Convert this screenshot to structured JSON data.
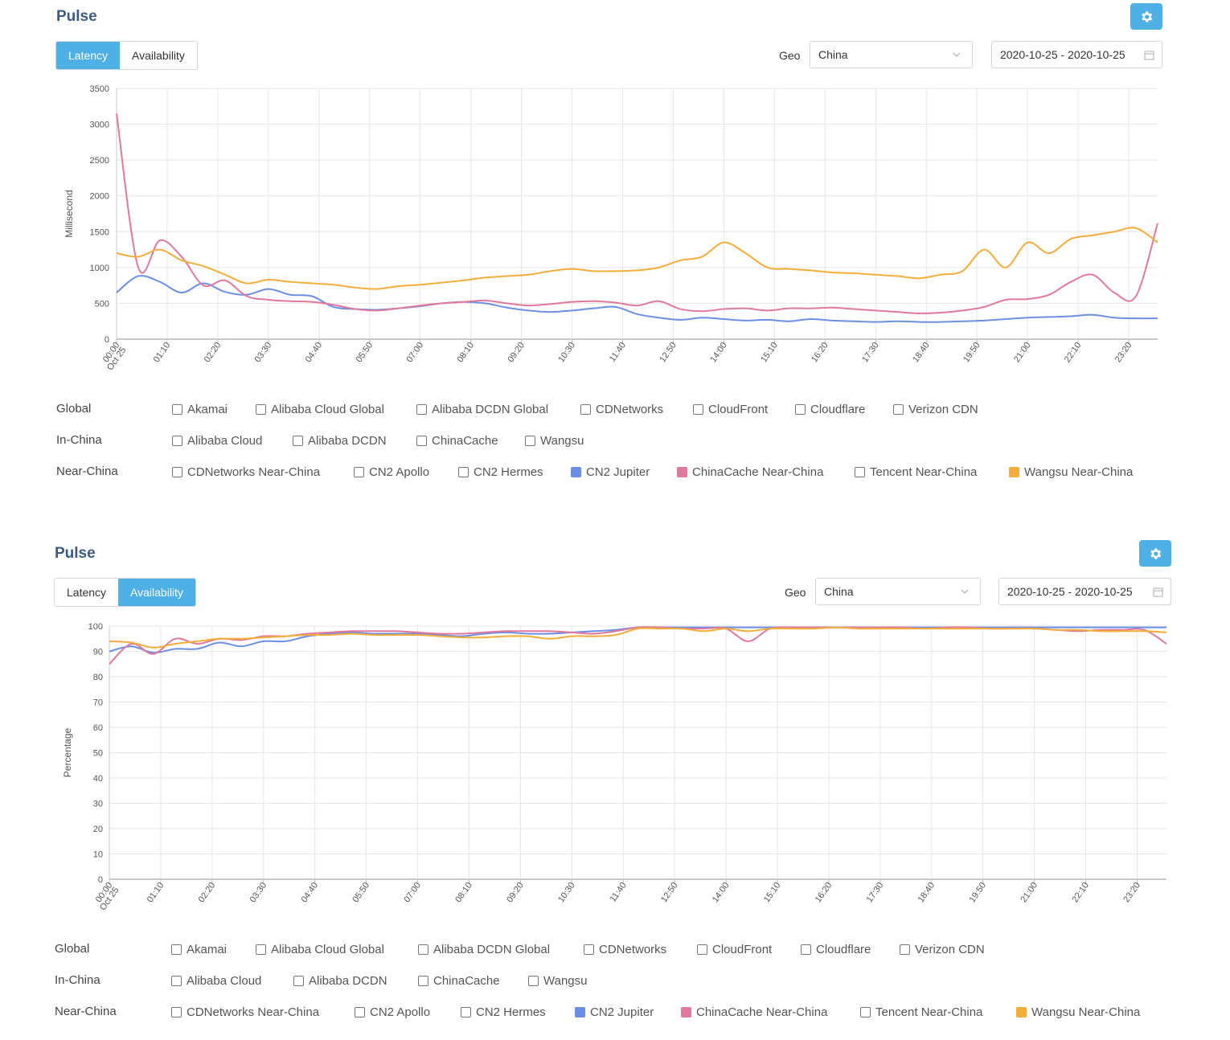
{
  "panels": [
    {
      "title": "Pulse",
      "tabs": [
        "Latency",
        "Availability"
      ],
      "active_tab": 0,
      "geo_label": "Geo",
      "geo_value": "China",
      "date_range": "2020-10-25 - 2020-10-25",
      "legend": {
        "groups": [
          {
            "label": "Global",
            "items": [
              {
                "label": "Akamai",
                "checked": false
              },
              {
                "label": "Alibaba Cloud Global",
                "checked": false
              },
              {
                "label": "Alibaba DCDN Global",
                "checked": false
              },
              {
                "label": "CDNetworks",
                "checked": false
              },
              {
                "label": "CloudFront",
                "checked": false
              },
              {
                "label": "Cloudflare",
                "checked": false
              },
              {
                "label": "Verizon CDN",
                "checked": false
              }
            ]
          },
          {
            "label": "In-China",
            "items": [
              {
                "label": "Alibaba Cloud",
                "checked": false
              },
              {
                "label": "Alibaba DCDN",
                "checked": false
              },
              {
                "label": "ChinaCache",
                "checked": false
              },
              {
                "label": "Wangsu",
                "checked": false
              }
            ]
          },
          {
            "label": "Near-China",
            "items": [
              {
                "label": "CDNetworks Near-China",
                "checked": false
              },
              {
                "label": "CN2 Apollo",
                "checked": false
              },
              {
                "label": "CN2 Hermes",
                "checked": false
              },
              {
                "label": "CN2 Jupiter",
                "checked": true,
                "color": "#6b8fe6"
              },
              {
                "label": "ChinaCache Near-China",
                "checked": true,
                "color": "#e0799b"
              },
              {
                "label": "Tencent Near-China",
                "checked": false
              },
              {
                "label": "Wangsu Near-China",
                "checked": true,
                "color": "#f2ad3a"
              }
            ]
          }
        ]
      }
    },
    {
      "title": "Pulse",
      "tabs": [
        "Latency",
        "Availability"
      ],
      "active_tab": 1,
      "geo_label": "Geo",
      "geo_value": "China",
      "date_range": "2020-10-25 - 2020-10-25",
      "legend": {
        "groups": [
          {
            "label": "Global",
            "items": [
              {
                "label": "Akamai",
                "checked": false
              },
              {
                "label": "Alibaba Cloud Global",
                "checked": false
              },
              {
                "label": "Alibaba DCDN Global",
                "checked": false
              },
              {
                "label": "CDNetworks",
                "checked": false
              },
              {
                "label": "CloudFront",
                "checked": false
              },
              {
                "label": "Cloudflare",
                "checked": false
              },
              {
                "label": "Verizon CDN",
                "checked": false
              }
            ]
          },
          {
            "label": "In-China",
            "items": [
              {
                "label": "Alibaba Cloud",
                "checked": false
              },
              {
                "label": "Alibaba DCDN",
                "checked": false
              },
              {
                "label": "ChinaCache",
                "checked": false
              },
              {
                "label": "Wangsu",
                "checked": false
              }
            ]
          },
          {
            "label": "Near-China",
            "items": [
              {
                "label": "CDNetworks Near-China",
                "checked": false
              },
              {
                "label": "CN2 Apollo",
                "checked": false
              },
              {
                "label": "CN2 Hermes",
                "checked": false
              },
              {
                "label": "CN2 Jupiter",
                "checked": true,
                "color": "#6b8fe6"
              },
              {
                "label": "ChinaCache Near-China",
                "checked": true,
                "color": "#e0799b"
              },
              {
                "label": "Tencent Near-China",
                "checked": false
              },
              {
                "label": "Wangsu Near-China",
                "checked": true,
                "color": "#f2ad3a"
              }
            ]
          }
        ]
      }
    }
  ],
  "chart_data": [
    {
      "type": "line",
      "title": "",
      "ylabel": "Millisecond",
      "ylim": [
        0,
        3500
      ],
      "yticks": [
        0,
        500,
        1000,
        1500,
        2000,
        2500,
        3000,
        3500
      ],
      "x_tick_labels": [
        "00:00",
        "01:10",
        "02:20",
        "03:30",
        "04:40",
        "05:50",
        "07:00",
        "08:10",
        "09:20",
        "10:30",
        "11:40",
        "12:50",
        "14:00",
        "15:10",
        "16:20",
        "17:30",
        "18:40",
        "19:50",
        "21:00",
        "22:10",
        "23:20"
      ],
      "x_first_date": "Oct 25",
      "x_hours": [
        0,
        0.5,
        1,
        1.5,
        2,
        2.5,
        3,
        3.5,
        4,
        4.5,
        5,
        5.5,
        6,
        6.5,
        7,
        7.5,
        8,
        8.5,
        9,
        9.5,
        10,
        10.5,
        11,
        11.5,
        12,
        12.5,
        13,
        13.5,
        14,
        14.5,
        15,
        15.5,
        16,
        16.5,
        17,
        17.5,
        18,
        18.5,
        19,
        19.5,
        20,
        20.5,
        21,
        21.5,
        22,
        22.5,
        23,
        23.5,
        24
      ],
      "series": [
        {
          "name": "CN2 Jupiter",
          "color": "#6b8fe6",
          "values": [
            650,
            880,
            800,
            650,
            780,
            660,
            620,
            700,
            620,
            600,
            450,
            420,
            410,
            430,
            460,
            500,
            520,
            500,
            440,
            400,
            380,
            400,
            430,
            450,
            350,
            300,
            270,
            300,
            280,
            260,
            270,
            250,
            280,
            260,
            250,
            240,
            250,
            240,
            240,
            250,
            260,
            280,
            300,
            310,
            320,
            340,
            300,
            290,
            290
          ]
        },
        {
          "name": "ChinaCache Near-China",
          "color": "#e0799b",
          "values": [
            3150,
            1000,
            1380,
            1150,
            750,
            820,
            600,
            550,
            530,
            520,
            480,
            420,
            400,
            430,
            470,
            500,
            520,
            540,
            500,
            470,
            490,
            520,
            530,
            510,
            470,
            530,
            420,
            390,
            420,
            430,
            400,
            430,
            430,
            440,
            420,
            400,
            380,
            360,
            370,
            400,
            450,
            550,
            560,
            620,
            800,
            900,
            650,
            600,
            1620
          ]
        },
        {
          "name": "Wangsu Near-China",
          "color": "#f2ad3a",
          "values": [
            1200,
            1150,
            1250,
            1100,
            1020,
            900,
            780,
            830,
            800,
            780,
            760,
            720,
            700,
            740,
            760,
            790,
            820,
            860,
            880,
            900,
            950,
            980,
            950,
            950,
            960,
            1000,
            1100,
            1150,
            1350,
            1200,
            1000,
            980,
            960,
            930,
            920,
            900,
            880,
            850,
            900,
            950,
            1250,
            1000,
            1350,
            1200,
            1400,
            1450,
            1500,
            1550,
            1350
          ]
        }
      ]
    },
    {
      "type": "line",
      "title": "",
      "ylabel": "Percentage",
      "ylim": [
        0,
        100
      ],
      "yticks": [
        0,
        10,
        20,
        30,
        40,
        50,
        60,
        70,
        80,
        90,
        100
      ],
      "x_tick_labels": [
        "00:00",
        "01:10",
        "02:20",
        "03:30",
        "04:40",
        "05:50",
        "07:00",
        "08:10",
        "09:20",
        "10:30",
        "11:40",
        "12:50",
        "14:00",
        "15:10",
        "16:20",
        "17:30",
        "18:40",
        "19:50",
        "21:00",
        "22:10",
        "23:20"
      ],
      "x_first_date": "Oct 25",
      "x_hours": [
        0,
        0.5,
        1,
        1.5,
        2,
        2.5,
        3,
        3.5,
        4,
        4.5,
        5,
        5.5,
        6,
        6.5,
        7,
        7.5,
        8,
        8.5,
        9,
        9.5,
        10,
        10.5,
        11,
        11.5,
        12,
        12.5,
        13,
        13.5,
        14,
        14.5,
        15,
        15.5,
        16,
        16.5,
        17,
        17.5,
        18,
        18.5,
        19,
        19.5,
        20,
        20.5,
        21,
        21.5,
        22,
        22.5,
        23,
        23.5,
        24
      ],
      "series": [
        {
          "name": "CN2 Jupiter",
          "color": "#6b8fe6",
          "values": [
            90,
            92,
            89.5,
            91,
            91,
            93.5,
            92,
            94,
            94,
            96,
            97,
            97.5,
            97,
            97,
            97,
            96.5,
            96,
            97,
            97.5,
            97,
            97,
            97.5,
            98,
            98.5,
            99.5,
            99.5,
            99.5,
            99.5,
            99.5,
            99.5,
            99.5,
            99.5,
            99.5,
            99.5,
            99.5,
            99.5,
            99.5,
            99.5,
            99.5,
            99.5,
            99.5,
            99.5,
            99.5,
            99.5,
            99.5,
            99.5,
            99.5,
            99.5,
            99.5
          ]
        },
        {
          "name": "ChinaCache Near-China",
          "color": "#e0799b",
          "values": [
            85,
            93,
            89,
            95,
            93,
            95,
            94.5,
            96,
            96,
            97,
            97.5,
            98,
            98,
            98,
            97.5,
            97,
            97,
            97.5,
            98,
            98,
            98,
            97.5,
            97,
            98,
            99.5,
            99.5,
            99,
            99,
            99,
            94,
            99,
            99.5,
            99.5,
            99.5,
            99.5,
            99.5,
            99.5,
            99,
            99.5,
            99.5,
            99,
            99,
            99,
            98.5,
            98,
            98.5,
            98.5,
            98.5,
            93
          ]
        },
        {
          "name": "Wangsu Near-China",
          "color": "#f2ad3a",
          "values": [
            94,
            93.5,
            91.5,
            93,
            94,
            95,
            95,
            95.5,
            96,
            96.5,
            96.5,
            97,
            96.5,
            96.5,
            96.5,
            96,
            95.5,
            95.5,
            96,
            96,
            95,
            96,
            96,
            96.5,
            99,
            99,
            99,
            98,
            99,
            98,
            99,
            99,
            99,
            99.5,
            99,
            99,
            99,
            99,
            99,
            99,
            99,
            99,
            99,
            98.5,
            98.5,
            98,
            98,
            98,
            97.5
          ]
        }
      ]
    }
  ]
}
